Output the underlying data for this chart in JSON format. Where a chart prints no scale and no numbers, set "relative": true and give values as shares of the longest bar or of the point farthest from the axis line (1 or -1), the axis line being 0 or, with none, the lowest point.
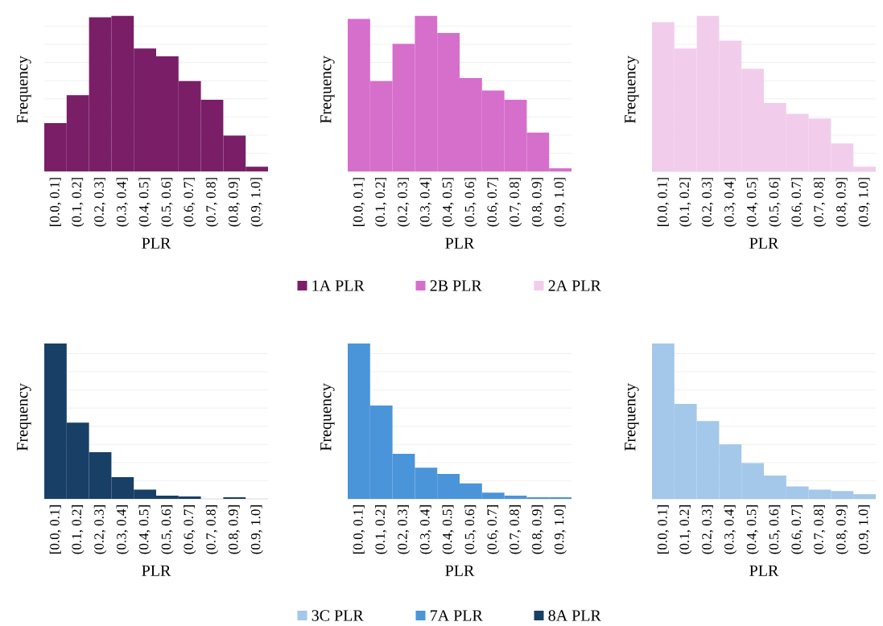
{
  "chart_data": [
    {
      "type": "bar",
      "relative": true,
      "categories": [
        "[0.0, 0.1]",
        "(0.1, 0.2]",
        "(0.2, 0.3]",
        "(0.3, 0.4]",
        "(0.4, 0.5]",
        "(0.5, 0.6]",
        "(0.6, 0.7]",
        "(0.7, 0.8]",
        "(0.8, 0.9]",
        "(0.9, 1.0]"
      ],
      "xlabel": "PLR",
      "ylabel": "Frequency",
      "grid": "y",
      "legend": "bottom",
      "series": [
        {
          "name": "1A PLR",
          "color": "#7a1e67",
          "values": [
            0.31,
            0.49,
            0.99,
            1,
            0.79,
            0.74,
            0.58,
            0.46,
            0.23,
            0.03
          ]
        }
      ]
    },
    {
      "type": "bar",
      "relative": true,
      "categories": [
        "[0.0, 0.1]",
        "(0.1, 0.2]",
        "(0.2, 0.3]",
        "(0.3, 0.4]",
        "(0.4, 0.5]",
        "(0.5, 0.6]",
        "(0.6, 0.7]",
        "(0.7, 0.8]",
        "(0.8, 0.9]",
        "(0.9, 1.0]"
      ],
      "xlabel": "PLR",
      "ylabel": "Frequency",
      "grid": "y",
      "legend": "bottom",
      "series": [
        {
          "name": "2B PLR",
          "color": "#d66ecb",
          "values": [
            0.98,
            0.58,
            0.82,
            1,
            0.89,
            0.6,
            0.52,
            0.46,
            0.25,
            0.02
          ]
        }
      ]
    },
    {
      "type": "bar",
      "relative": true,
      "categories": [
        "[0.0, 0.1]",
        "(0.1, 0.2]",
        "(0.2, 0.3]",
        "(0.3, 0.4]",
        "(0.4, 0.5]",
        "(0.5, 0.6]",
        "(0.6, 0.7]",
        "(0.7, 0.8]",
        "(0.8, 0.9]",
        "(0.9, 1.0]"
      ],
      "xlabel": "PLR",
      "ylabel": "Frequency",
      "grid": "y",
      "legend": "bottom",
      "series": [
        {
          "name": "2A PLR",
          "color": "#f1cdeb",
          "values": [
            0.96,
            0.79,
            1,
            0.84,
            0.66,
            0.44,
            0.37,
            0.34,
            0.18,
            0.03
          ]
        }
      ]
    },
    {
      "type": "bar",
      "relative": true,
      "categories": [
        "[0.0, 0.1]",
        "(0.1, 0.2]",
        "(0.2, 0.3]",
        "(0.3, 0.4]",
        "(0.4, 0.5]",
        "(0.5, 0.6]",
        "(0.6, 0.7]",
        "(0.7, 0.8]",
        "(0.8, 0.9]",
        "(0.9, 1.0]"
      ],
      "xlabel": "PLR",
      "ylabel": "Frequency",
      "grid": "y",
      "legend": "bottom",
      "series": [
        {
          "name": "8A PLR",
          "color": "#183f66",
          "values": [
            1,
            0.49,
            0.3,
            0.14,
            0.06,
            0.02,
            0.015,
            0,
            0.01,
            0
          ]
        }
      ]
    },
    {
      "type": "bar",
      "relative": true,
      "categories": [
        "[0.0, 0.1]",
        "(0.1, 0.2]",
        "(0.2, 0.3]",
        "(0.3, 0.4]",
        "(0.4, 0.5]",
        "(0.5, 0.6]",
        "(0.6, 0.7]",
        "(0.7, 0.8]",
        "(0.8, 0.9]",
        "(0.9, 1.0]"
      ],
      "xlabel": "PLR",
      "ylabel": "Frequency",
      "grid": "y",
      "legend": "bottom",
      "series": [
        {
          "name": "7A PLR",
          "color": "#4a94d9",
          "values": [
            1,
            0.6,
            0.29,
            0.2,
            0.16,
            0.1,
            0.04,
            0.02,
            0.01,
            0.01
          ]
        }
      ]
    },
    {
      "type": "bar",
      "relative": true,
      "categories": [
        "[0.0, 0.1]",
        "(0.1, 0.2]",
        "(0.2, 0.3]",
        "(0.3, 0.4]",
        "(0.4, 0.5]",
        "(0.5, 0.6]",
        "(0.6, 0.7]",
        "(0.7, 0.8]",
        "(0.8, 0.9]",
        "(0.9, 1.0]"
      ],
      "xlabel": "PLR",
      "ylabel": "Frequency",
      "grid": "y",
      "legend": "bottom",
      "series": [
        {
          "name": "3C PLR",
          "color": "#a3c8ea",
          "values": [
            1,
            0.61,
            0.5,
            0.35,
            0.23,
            0.15,
            0.08,
            0.06,
            0.05,
            0.03
          ]
        }
      ]
    }
  ]
}
